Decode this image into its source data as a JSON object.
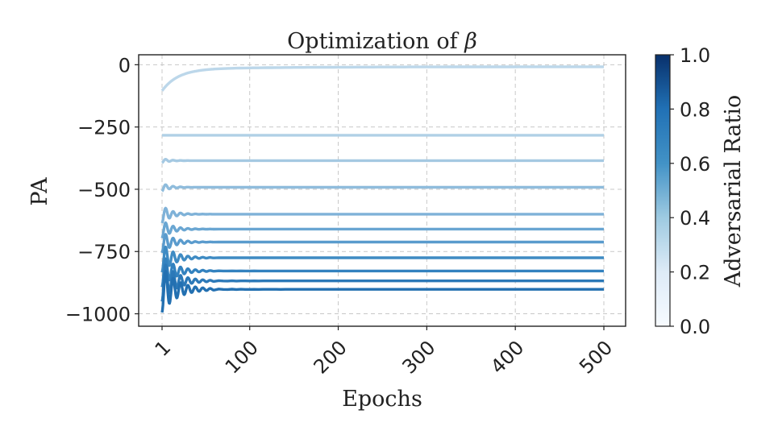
{
  "chart_data": {
    "type": "line",
    "title": "Optimization of",
    "title_symbol": "β",
    "xlabel": "Epochs",
    "ylabel": "PA",
    "xlim": [
      1,
      500
    ],
    "ylim": [
      -1050,
      40
    ],
    "x_ticks": [
      1,
      100,
      200,
      300,
      400,
      500
    ],
    "x_tick_labels": [
      "1",
      "100",
      "200",
      "300",
      "400",
      "500"
    ],
    "y_ticks": [
      0,
      -250,
      -500,
      -750,
      -1000
    ],
    "y_tick_labels": [
      "0",
      "−250",
      "−500",
      "−750",
      "−1000"
    ],
    "grid": true,
    "colorbar": {
      "label": "Adversarial Ratio",
      "range": [
        0.0,
        1.0
      ],
      "ticks": [
        0.0,
        0.2,
        0.4,
        0.6,
        0.8,
        1.0
      ],
      "tick_labels": [
        "0.0",
        "0.2",
        "0.4",
        "0.6",
        "0.8",
        "1.0"
      ],
      "colormap": "Blues"
    },
    "series": [
      {
        "ratio": 0.3,
        "start": -95,
        "final": -8,
        "color": "#bcd7ea"
      },
      {
        "ratio": 0.35,
        "start": -283,
        "final": -283,
        "color": "#b0d0e6"
      },
      {
        "ratio": 0.4,
        "start": -395,
        "final": -385,
        "color": "#a5c9e2"
      },
      {
        "ratio": 0.45,
        "start": -510,
        "final": -492,
        "color": "#8fbcdc"
      },
      {
        "ratio": 0.5,
        "start": -640,
        "final": -600,
        "color": "#7fb2d8"
      },
      {
        "ratio": 0.55,
        "start": -700,
        "final": -660,
        "color": "#6aa6d2"
      },
      {
        "ratio": 0.6,
        "start": -760,
        "final": -712,
        "color": "#5a9bcd"
      },
      {
        "ratio": 0.65,
        "start": -840,
        "final": -775,
        "color": "#3f8bc3"
      },
      {
        "ratio": 0.7,
        "start": -900,
        "final": -828,
        "color": "#3382bf"
      },
      {
        "ratio": 0.75,
        "start": -960,
        "final": -868,
        "color": "#2c79b8"
      },
      {
        "ratio": 0.8,
        "start": -1005,
        "final": -902,
        "color": "#2370b1"
      }
    ]
  }
}
